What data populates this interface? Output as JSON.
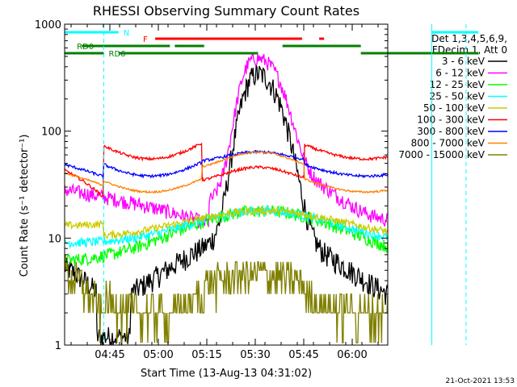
{
  "chart_data": {
    "type": "line",
    "title": "RHESSI Observing Summary Count Rates",
    "ylabel": "Count Rate (s⁻¹ detector⁻¹)",
    "xlabel": "Start Time (13-Aug-13 04:31:02)",
    "footer": "21-Oct-2021 13:53",
    "y_scale": "log",
    "ylim": [
      1,
      1000
    ],
    "y_ticks": [
      {
        "v": 1,
        "label": "1"
      },
      {
        "v": 10,
        "label": "10"
      },
      {
        "v": 100,
        "label": "100"
      },
      {
        "v": 1000,
        "label": "1000"
      }
    ],
    "x_range_minutes": [
      4.5,
      70.5
    ],
    "x_ticks": [
      {
        "t": 14,
        "label": "04:45"
      },
      {
        "t": 29,
        "label": "05:00"
      },
      {
        "t": 44,
        "label": "05:15"
      },
      {
        "t": 59,
        "label": "05:30"
      },
      {
        "t": 74,
        "label": "05:45"
      },
      {
        "t": 89,
        "label": "06:00"
      }
    ],
    "legend_header": [
      "Det 1,3,4,5,6,9,",
      "FDecim 1, Att 0"
    ],
    "flags": {
      "N": {
        "label": "N",
        "color": "#00ffff"
      },
      "F": {
        "label": "F",
        "color": "#ff0000"
      },
      "RD0": {
        "label": "RD0",
        "color": "#008000"
      },
      "RD6": {
        "label": "RD6",
        "color": "#008000"
      }
    },
    "series": [
      {
        "name": "3 - 6 keV",
        "color": "#000000"
      },
      {
        "name": "6 - 12 keV",
        "color": "#ff00ff"
      },
      {
        "name": "12 - 25 keV",
        "color": "#00ff00"
      },
      {
        "name": "25 - 50 keV",
        "color": "#00ffff"
      },
      {
        "name": "50 - 100 keV",
        "color": "#cccc00"
      },
      {
        "name": "100 - 300 keV",
        "color": "#ff0000"
      },
      {
        "name": "300 - 800 keV",
        "color": "#0000ff"
      },
      {
        "name": "800 - 7000 keV",
        "color": "#ff8000"
      },
      {
        "name": "7000 - 15000 keV",
        "color": "#808000"
      }
    ]
  }
}
